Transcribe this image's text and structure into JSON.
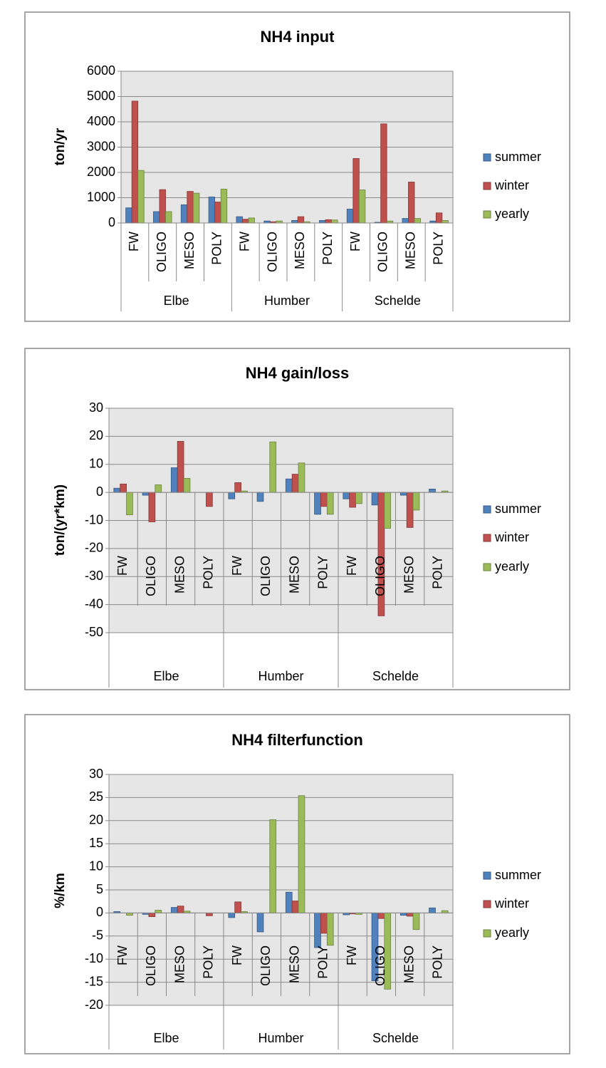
{
  "chart_data": [
    {
      "type": "bar",
      "title": "NH4 input",
      "ylabel": "ton/yr",
      "groups": [
        "Elbe",
        "Humber",
        "Schelde"
      ],
      "categories": [
        "FW",
        "OLIGO",
        "MESO",
        "POLY",
        "FW",
        "OLIGO",
        "MESO",
        "POLY",
        "FW",
        "OLIGO",
        "MESO",
        "POLY"
      ],
      "series": [
        {
          "name": "summer",
          "color": "#4f81bd",
          "values": [
            600,
            450,
            720,
            1030,
            250,
            80,
            100,
            100,
            550,
            30,
            180,
            80
          ]
        },
        {
          "name": "winter",
          "color": "#c0504d",
          "values": [
            4820,
            1320,
            1250,
            830,
            150,
            50,
            250,
            130,
            2550,
            3920,
            1620,
            400
          ]
        },
        {
          "name": "yearly",
          "color": "#9bbb59",
          "values": [
            2080,
            450,
            1180,
            1340,
            200,
            80,
            50,
            120,
            1310,
            80,
            180,
            100
          ]
        }
      ],
      "ylim": [
        0,
        6000
      ],
      "yticks": [
        0,
        1000,
        2000,
        3000,
        4000,
        5000,
        6000
      ],
      "grid": true,
      "legend": "right"
    },
    {
      "type": "bar",
      "title": "NH4 gain/loss",
      "ylabel": "ton/(yr*km)",
      "groups": [
        "Elbe",
        "Humber",
        "Schelde"
      ],
      "categories": [
        "FW",
        "OLIGO",
        "MESO",
        "POLY",
        "FW",
        "OLIGO",
        "MESO",
        "POLY",
        "FW",
        "OLIGO",
        "MESO",
        "POLY"
      ],
      "series": [
        {
          "name": "summer",
          "color": "#4f81bd",
          "values": [
            1.5,
            -1,
            8.8,
            0,
            -2.3,
            -3.2,
            4.8,
            -7.8,
            -2.3,
            -4.5,
            -1,
            1.2
          ]
        },
        {
          "name": "winter",
          "color": "#c0504d",
          "values": [
            3,
            -10.5,
            18.2,
            -5,
            3.5,
            0,
            6.5,
            -5,
            -5.3,
            -44,
            -12.5,
            0
          ]
        },
        {
          "name": "yearly",
          "color": "#9bbb59",
          "values": [
            -8,
            2.7,
            5,
            0,
            0.5,
            18,
            10.5,
            -7.8,
            -4,
            -12.8,
            -6.3,
            0.5
          ]
        }
      ],
      "ylim": [
        -50,
        30
      ],
      "yticks": [
        -50,
        -40,
        -30,
        -20,
        -10,
        0,
        10,
        20,
        30
      ],
      "grid": true,
      "legend": "right"
    },
    {
      "type": "bar",
      "title": "NH4 filterfunction",
      "ylabel": "%/km",
      "groups": [
        "Elbe",
        "Humber",
        "Schelde"
      ],
      "categories": [
        "FW",
        "OLIGO",
        "MESO",
        "POLY",
        "FW",
        "OLIGO",
        "MESO",
        "POLY",
        "FW",
        "OLIGO",
        "MESO",
        "POLY"
      ],
      "series": [
        {
          "name": "summer",
          "color": "#4f81bd",
          "values": [
            0.3,
            -0.3,
            1.2,
            0,
            -1,
            -4.1,
            4.5,
            -7.5,
            -0.4,
            -14.7,
            -0.5,
            1.1
          ]
        },
        {
          "name": "winter",
          "color": "#c0504d",
          "values": [
            0,
            -0.8,
            1.5,
            -0.6,
            2.4,
            0,
            2.6,
            -4.4,
            -0.2,
            -1.2,
            -0.7,
            0
          ]
        },
        {
          "name": "yearly",
          "color": "#9bbb59",
          "values": [
            -0.5,
            0.6,
            0.4,
            0,
            0.3,
            20.2,
            25.4,
            -7,
            -0.3,
            -16.5,
            -3.6,
            0.5
          ]
        }
      ],
      "ylim": [
        -20,
        30
      ],
      "yticks": [
        -20,
        -15,
        -10,
        -5,
        0,
        5,
        10,
        15,
        20,
        25,
        30
      ],
      "grid": true,
      "legend": "right"
    }
  ]
}
